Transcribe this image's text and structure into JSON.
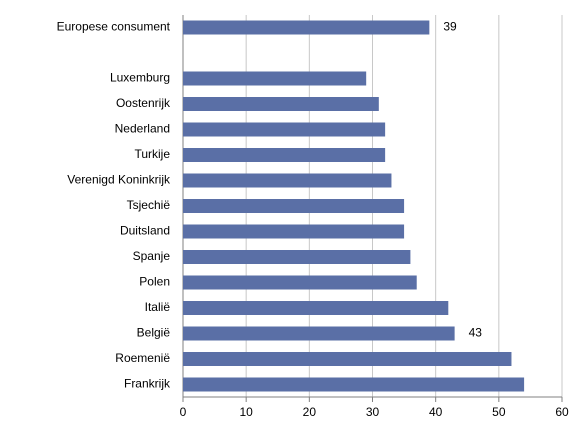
{
  "chart_data": {
    "type": "bar",
    "orientation": "horizontal",
    "categories": [
      "Europese consument",
      null,
      "Luxemburg",
      "Oostenrijk",
      "Nederland",
      "Turkije",
      "Verenigd Koninkrijk",
      "Tsjechië",
      "Duitsland",
      "Spanje",
      "Polen",
      "Italië",
      "België",
      "Roemenië",
      "Frankrijk"
    ],
    "values": [
      39,
      null,
      29,
      31,
      32,
      32,
      33,
      35,
      35,
      36,
      37,
      42,
      43,
      52,
      54
    ],
    "value_labels": [
      "39",
      null,
      null,
      null,
      null,
      null,
      null,
      null,
      null,
      null,
      null,
      null,
      "43",
      null,
      null
    ],
    "color": "#5a6fa6",
    "xlim": [
      0,
      60
    ],
    "xticks": [
      0,
      10,
      20,
      30,
      40,
      50,
      60
    ],
    "grid": true
  }
}
